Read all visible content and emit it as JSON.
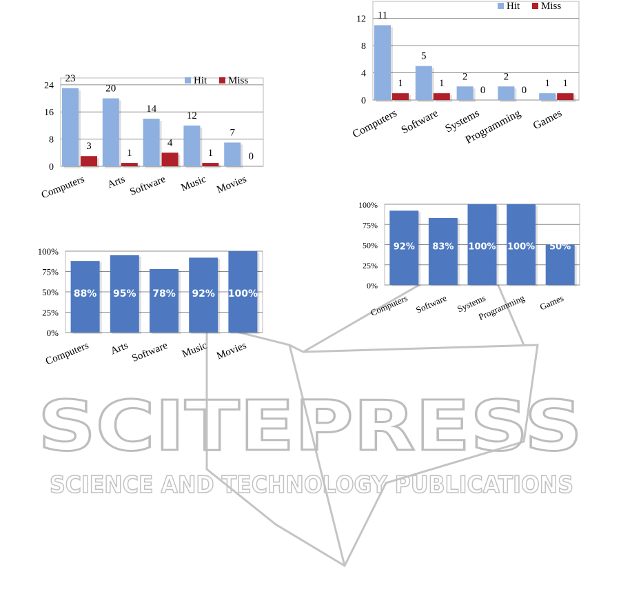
{
  "colors": {
    "hit": "#8eb0e0",
    "miss": "#b0202a",
    "pct_bar": "#4e79c0",
    "grid": "#8c8c8c",
    "watermark": "#bdbdbd"
  },
  "watermark": {
    "brand": "SCITEPRESS",
    "tagline": "SCIENCE AND TECHNOLOGY PUBLICATIONS"
  },
  "chart_data": [
    {
      "type": "bar",
      "categories": [
        "Computers",
        "Arts",
        "Software",
        "Music",
        "Movies"
      ],
      "series": [
        {
          "name": "Hit",
          "values": [
            23,
            20,
            14,
            12,
            7
          ]
        },
        {
          "name": "Miss",
          "values": [
            3,
            1,
            4,
            1,
            0
          ]
        }
      ],
      "yticks": [
        "0",
        "8",
        "16",
        "24"
      ],
      "ylim": [
        0,
        26
      ],
      "legend_position": "top-right",
      "grid": true
    },
    {
      "type": "bar",
      "categories": [
        "Computers",
        "Software",
        "Systems",
        "Programming",
        "Games"
      ],
      "series": [
        {
          "name": "Hit",
          "values": [
            11,
            5,
            2,
            2,
            1
          ]
        },
        {
          "name": "Miss",
          "values": [
            1,
            1,
            0,
            0,
            1
          ]
        }
      ],
      "yticks": [
        "0",
        "4",
        "8",
        "12"
      ],
      "ylim": [
        0,
        14.5
      ],
      "legend_position": "top-right",
      "grid": true
    },
    {
      "type": "bar",
      "categories": [
        "Computers",
        "Arts",
        "Software",
        "Music",
        "Movies"
      ],
      "values": [
        88,
        95,
        78,
        92,
        100
      ],
      "value_labels": [
        "88%",
        "95%",
        "78%",
        "92%",
        "100%"
      ],
      "yticks": [
        "0%",
        "25%",
        "50%",
        "75%",
        "100%"
      ],
      "ylim": [
        0,
        100
      ],
      "grid": true
    },
    {
      "type": "bar",
      "categories": [
        "Computers",
        "Software",
        "Systems",
        "Programming",
        "Games"
      ],
      "values": [
        92,
        83,
        100,
        100,
        50
      ],
      "value_labels": [
        "92%",
        "83%",
        "100%",
        "100%",
        "50%"
      ],
      "yticks": [
        "0%",
        "25%",
        "50%",
        "75%",
        "100%"
      ],
      "ylim": [
        0,
        100
      ],
      "grid": true
    }
  ]
}
